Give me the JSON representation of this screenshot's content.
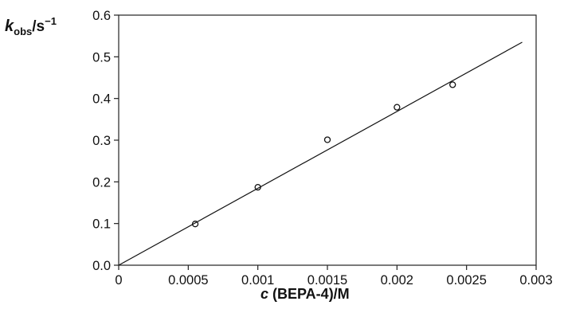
{
  "chart_data": {
    "type": "scatter",
    "x": [
      0.00055,
      0.001,
      0.0015,
      0.002,
      0.0024
    ],
    "y": [
      0.099,
      0.187,
      0.301,
      0.379,
      0.433
    ],
    "fit_line": {
      "x": [
        0,
        0.0029
      ],
      "y": [
        0,
        0.535
      ]
    },
    "xlim": [
      0,
      0.003
    ],
    "ylim": [
      0,
      0.6
    ],
    "x_ticks": [
      "0",
      "0.0005",
      "0.001",
      "0.0015",
      "0.002",
      "0.0025",
      "0.003"
    ],
    "y_ticks": [
      "0.0",
      "0.1",
      "0.2",
      "0.3",
      "0.4",
      "0.5",
      "0.6"
    ],
    "ylabel": {
      "symbol": "k",
      "subscript": "obs",
      "unit": "/s",
      "exponent": "−1"
    },
    "xlabel": {
      "symbol": "c",
      "rest": " (BEPA-4)/M"
    },
    "grid": false,
    "legend": "none"
  }
}
